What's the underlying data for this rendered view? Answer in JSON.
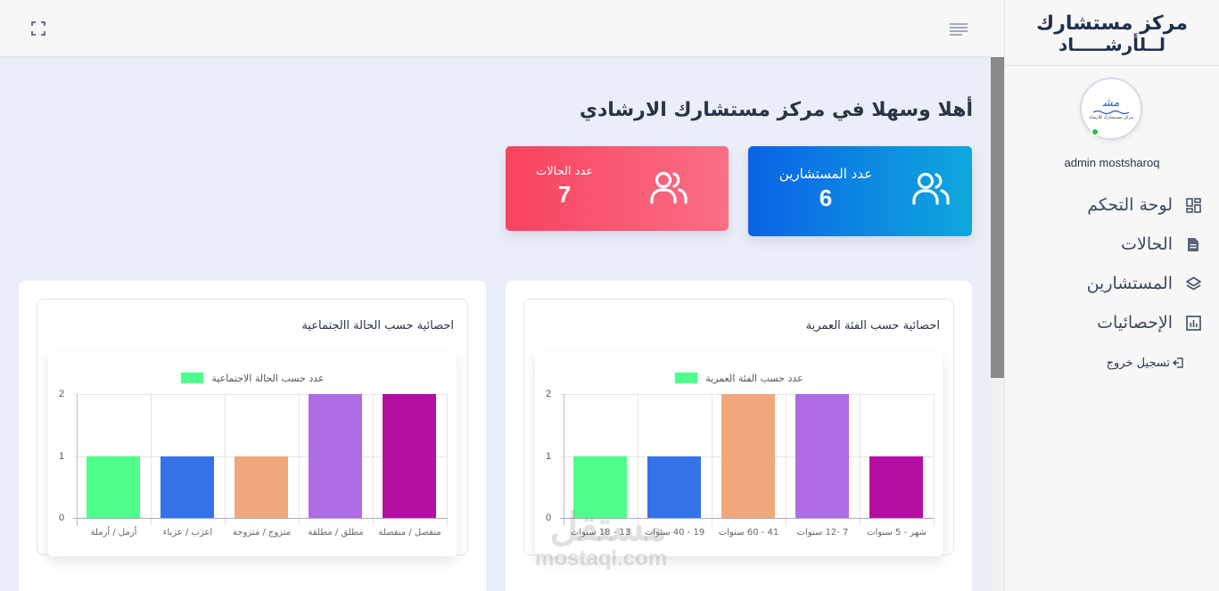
{
  "brand": {
    "line1": "مركز مستشارك",
    "line2": "لــلأرشـــــاد"
  },
  "avatar": {
    "mark": "ﻣﺸ",
    "text": "مركز مستشارك للارشاد",
    "status": "online"
  },
  "user": {
    "name": "admin mostsharoq"
  },
  "sidebar": {
    "items": [
      {
        "label": "لوحة التحكم",
        "icon": "dashboard-icon"
      },
      {
        "label": "الحالات",
        "icon": "document-icon"
      },
      {
        "label": "المستشارين",
        "icon": "layers-icon"
      },
      {
        "label": "الإحصائيات",
        "icon": "bar-chart-icon"
      }
    ],
    "logout": {
      "label": "تسجيل خروج",
      "icon": "logout-icon"
    }
  },
  "topbar": {
    "expand_icon": "fullscreen-icon",
    "menu_icon": "hamburger-icon"
  },
  "main": {
    "welcome": "أهلا وسهلا في مركز مستشارك الارشادي",
    "stats": [
      {
        "label": "عدد المستشارين",
        "value": "6",
        "color_from": "#0a63e6",
        "color_to": "#0fa8dd"
      },
      {
        "label": "عدد الحالات",
        "value": "7",
        "color_from": "#f8435f",
        "color_to": "#fa6f86"
      }
    ],
    "panels": [
      {
        "title": "احصائية حسب الفئة العمرية"
      },
      {
        "title": "احصائية حسب الحالة االجتماعية"
      }
    ]
  },
  "chart_data": [
    {
      "type": "bar",
      "title": "احصائية حسب الفئة العمرية",
      "legend": [
        "عدد حسب الفئة العمرية"
      ],
      "legend_position": "top",
      "categories": [
        "13 - 18 سنوات",
        "19 - 40 سنوات",
        "41 - 60 سنوات",
        "7 -12 سنوات",
        "شهر - 5 سنوات"
      ],
      "values": [
        1,
        1,
        2,
        2,
        1
      ],
      "colors": [
        "#4ffe8a",
        "#3572e8",
        "#f0a77c",
        "#ae6ce4",
        "#b40fa2"
      ],
      "yticks": [
        "0",
        "1",
        "2"
      ],
      "ylim": [
        0,
        2
      ],
      "grid": true,
      "xlabel": "",
      "ylabel": ""
    },
    {
      "type": "bar",
      "title": "احصائية حسب الحالة االجتماعية",
      "legend": [
        "عدد حسب الحالة الاجتماعية"
      ],
      "legend_position": "top",
      "categories": [
        "أرمل / أرملة",
        "اعزب / عزباء",
        "متزوج / متزوجة",
        "مطلق / مطلقة",
        "منفصل / منفصلة"
      ],
      "values": [
        1,
        1,
        1,
        2,
        2
      ],
      "colors": [
        "#4ffe8a",
        "#3572e8",
        "#f0a77c",
        "#ae6ce4",
        "#b40fa2"
      ],
      "yticks": [
        "0",
        "1",
        "2"
      ],
      "ylim": [
        0,
        2
      ],
      "grid": true,
      "xlabel": "",
      "ylabel": ""
    }
  ],
  "watermark": {
    "ar": "مستقل",
    "en": "mostaql.com"
  }
}
